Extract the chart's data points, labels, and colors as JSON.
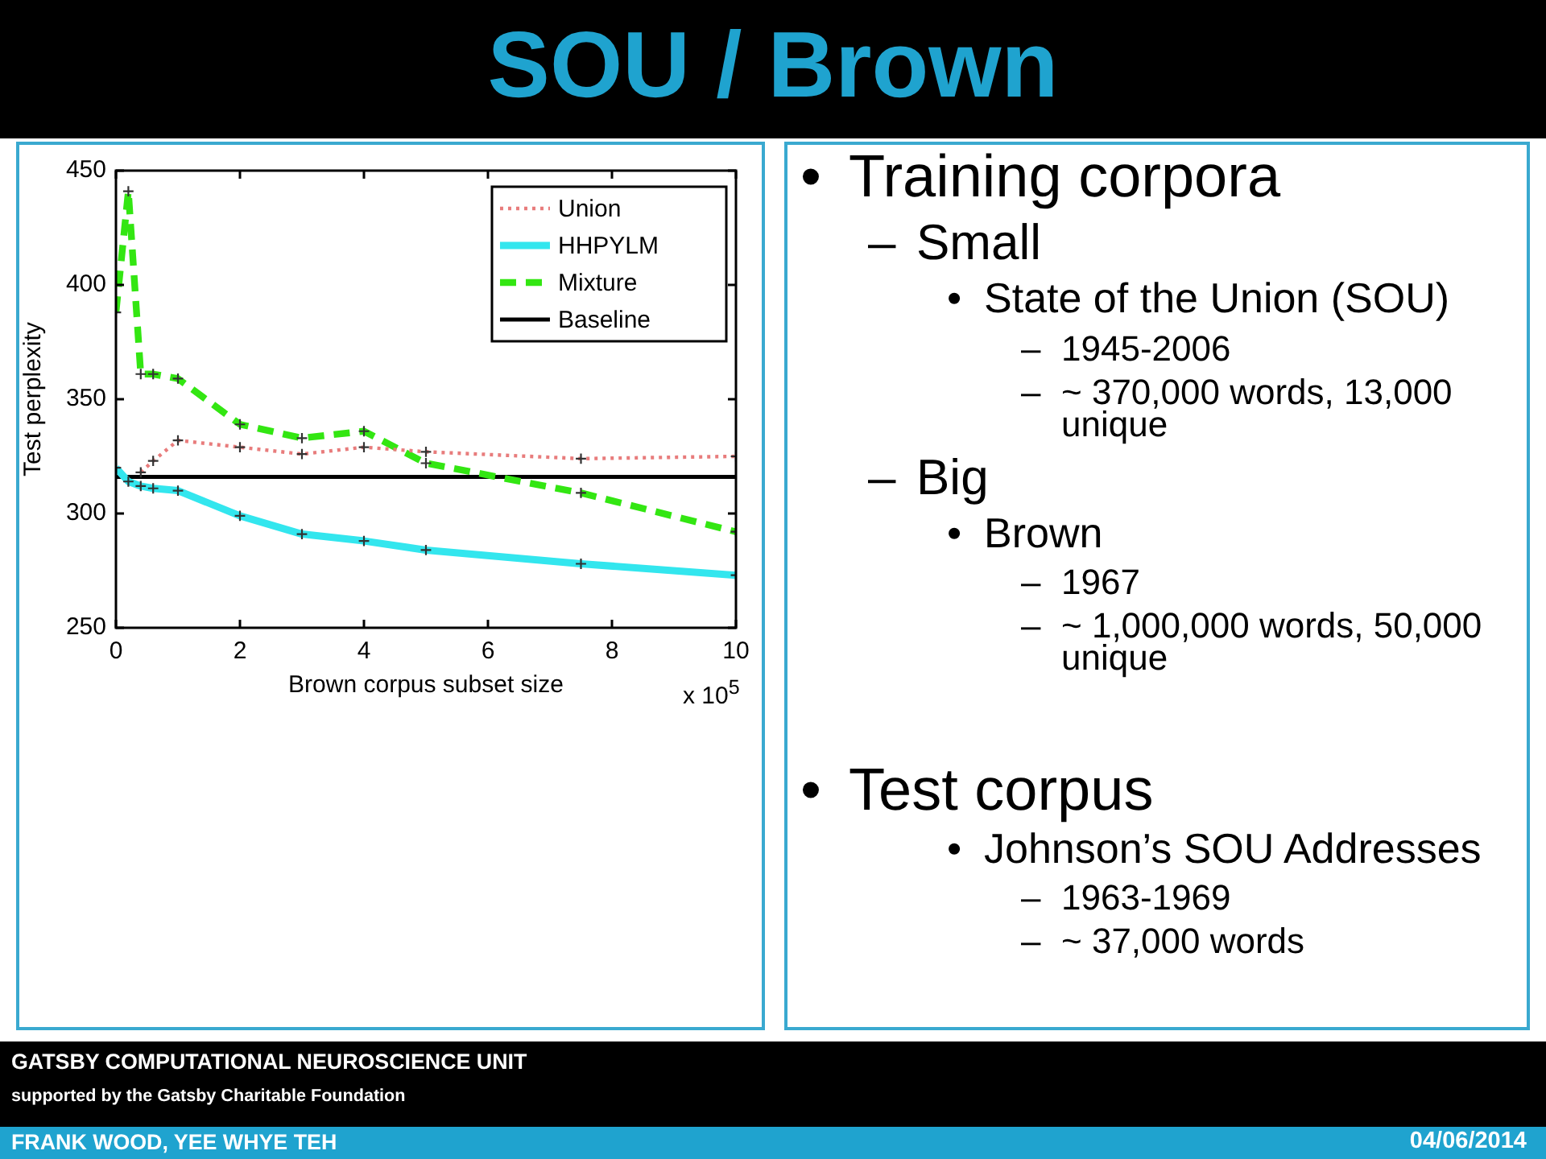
{
  "chart_data": {
    "type": "line",
    "title": "SOU / Brown",
    "xlabel": "Brown corpus subset size",
    "ylabel": "Test perplexity",
    "series": [
      {
        "name": "Union",
        "color": "#e87c7c",
        "line_style": "dotted",
        "x": [
          0.4,
          0.6,
          1,
          2,
          3,
          4,
          5,
          7.5,
          10
        ],
        "values": [
          318,
          323,
          332,
          329,
          326,
          329,
          327,
          324,
          325
        ]
      },
      {
        "name": "HHPYLM",
        "color": "#33e6ee",
        "line_style": "solid",
        "x": [
          0,
          0.2,
          0.4,
          0.6,
          1,
          2,
          3,
          4,
          5,
          7.5,
          10
        ],
        "values": [
          320,
          314,
          312,
          311,
          310,
          299,
          291,
          288,
          284,
          278,
          273
        ]
      },
      {
        "name": "Mixture",
        "color": "#33e612",
        "line_style": "dashed",
        "x": [
          0,
          0.2,
          0.4,
          0.6,
          1,
          2,
          3,
          4,
          5,
          7.5,
          10
        ],
        "values": [
          388,
          441,
          361,
          361,
          359,
          339,
          333,
          336,
          322,
          309,
          292
        ]
      },
      {
        "name": "Baseline",
        "color": "#000000",
        "line_style": "solid",
        "marker": "none",
        "x": [
          0,
          10
        ],
        "values": [
          316,
          316
        ]
      }
    ],
    "xlim": [
      0,
      10
    ],
    "xticks": [
      0,
      2,
      4,
      6,
      8,
      10
    ],
    "ylim": [
      250,
      450
    ],
    "yticks": [
      250,
      300,
      350,
      400,
      450
    ],
    "grid": false,
    "legend": "top right",
    "marker": "cross",
    "annotations": [
      "x 10$^{5}$",
      "• Training corpora",
      "– Small",
      "• State of the Union (SOU)",
      "– 1945-2006",
      "– ~ 370,000 words, 13,000 unique",
      "– Big",
      "• Brown",
      "– 1967",
      "– ~ 1,000,000 words, 50,000 unique",
      "• Test corpus",
      "• Johnson’s SOU Addresses",
      "– 1963-1969",
      "– ~ 37,000 words",
      "GATSBY COMPUTATIONAL NEUROSCIENCE UNIT",
      "supported by the Gatsby Charitable Foundation",
      "FRANK WOOD, YEE WHYE TEH",
      "04/06/2014"
    ]
  }
}
